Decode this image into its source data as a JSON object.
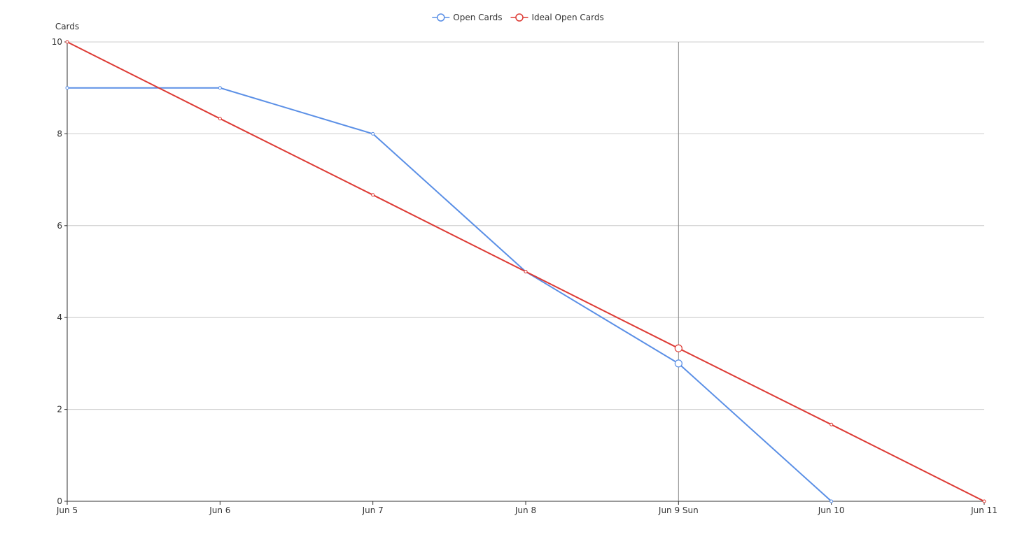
{
  "chart_data": {
    "type": "line",
    "title": "",
    "xlabel": "",
    "ylabel": "Cards",
    "categories": [
      "Jun 5",
      "Jun 6",
      "Jun 7",
      "Jun 8",
      "Jun 9 Sun",
      "Jun 10",
      "Jun 11"
    ],
    "ylim": [
      0,
      10
    ],
    "yticks": [
      0,
      2,
      4,
      6,
      8,
      10
    ],
    "grid": true,
    "legend_position": "top-center",
    "highlighted_category": "Jun 9 Sun",
    "series": [
      {
        "name": "Open Cards",
        "color": "#5a8fe6",
        "values": [
          9,
          9,
          8,
          5,
          3,
          0,
          null
        ]
      },
      {
        "name": "Ideal Open Cards",
        "color": "#dd3b35",
        "values": [
          10,
          8.33,
          6.67,
          5,
          3.33,
          1.67,
          0
        ]
      }
    ]
  }
}
